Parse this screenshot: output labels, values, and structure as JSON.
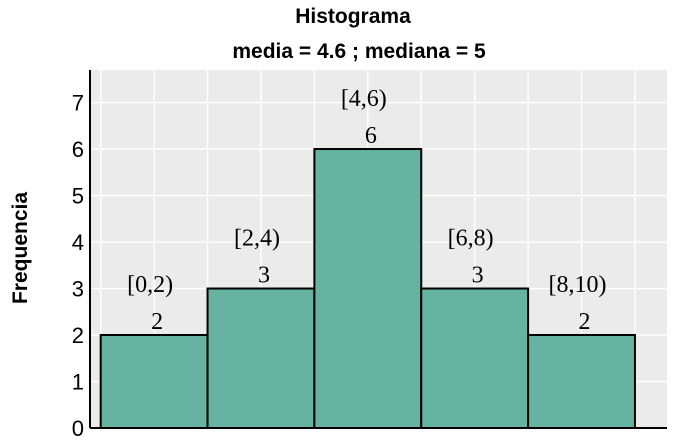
{
  "title": "Histograma",
  "subtitle": "media = 4.6 ; mediana = 5",
  "colors": {
    "bar_fill": "#67b3a1",
    "bar_edge": "#000000",
    "plot_background": "#ebebeb",
    "grid": "#ffffff"
  },
  "chart_data": {
    "type": "bar",
    "title": "Histograma",
    "subtitle": "media = 4.6 ; mediana = 5",
    "xlabel": "",
    "ylabel": "Frequencia",
    "bins": [
      [
        0,
        2
      ],
      [
        2,
        4
      ],
      [
        4,
        6
      ],
      [
        6,
        8
      ],
      [
        8,
        10
      ]
    ],
    "categories": [
      "[0,2)",
      "[2,4)",
      "[4,6)",
      "[6,8)",
      "[8,10)"
    ],
    "values": [
      2,
      3,
      6,
      3,
      2
    ],
    "xlim": [
      -0.2,
      10.6
    ],
    "ylim": [
      0,
      7.7
    ],
    "yticks": [
      0,
      1,
      2,
      3,
      4,
      5,
      6,
      7
    ],
    "grid": true,
    "legend": "none"
  }
}
